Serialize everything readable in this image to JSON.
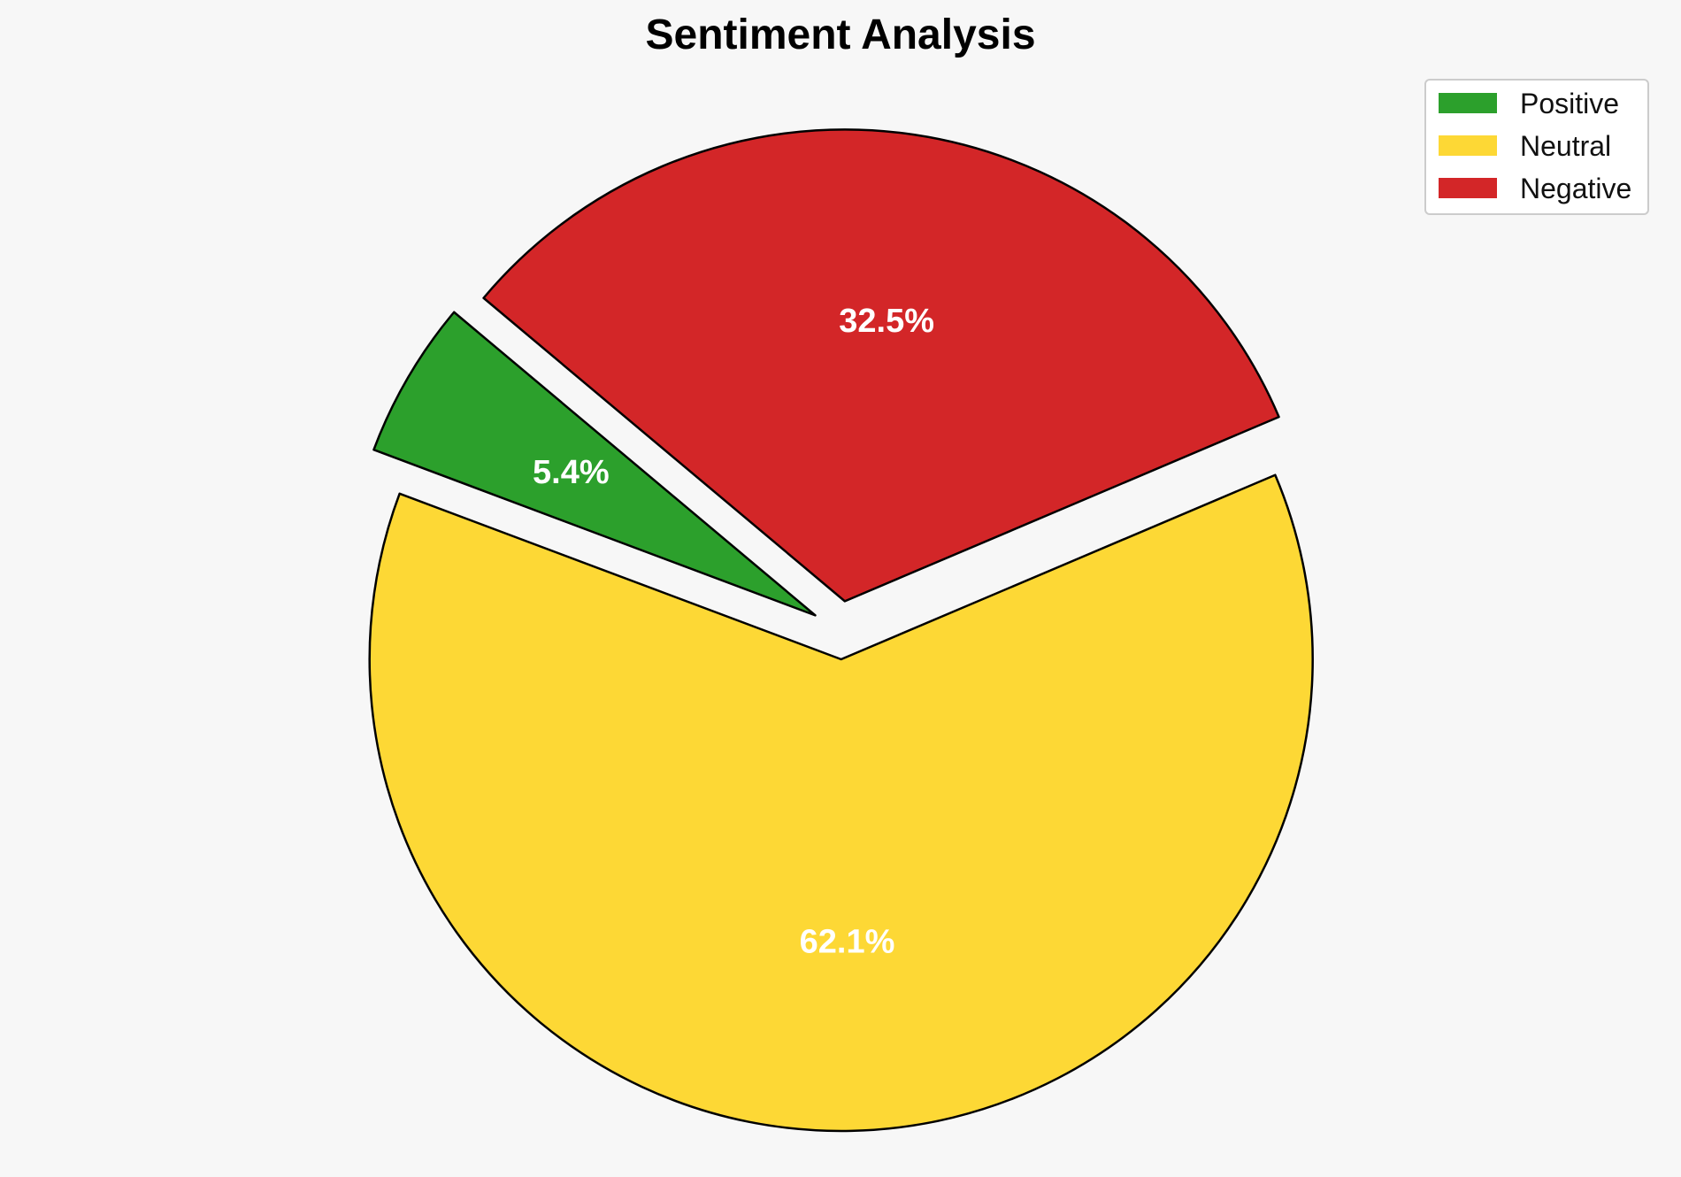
{
  "chart_data": {
    "type": "pie",
    "title": "Sentiment Analysis",
    "slices": [
      {
        "label": "Positive",
        "value": 5.4,
        "value_label": "5.4%",
        "color": "#2ca02c",
        "exploded": true
      },
      {
        "label": "Neutral",
        "value": 62.1,
        "value_label": "62.1%",
        "color": "#fdd835",
        "exploded": true
      },
      {
        "label": "Negative",
        "value": 32.5,
        "value_label": "32.5%",
        "color": "#d32628",
        "exploded": true
      }
    ],
    "legend": {
      "placement": "top-right",
      "entries": [
        "Positive",
        "Neutral",
        "Negative"
      ]
    },
    "edge_color": "#000000",
    "label_color": "#ffffff"
  }
}
